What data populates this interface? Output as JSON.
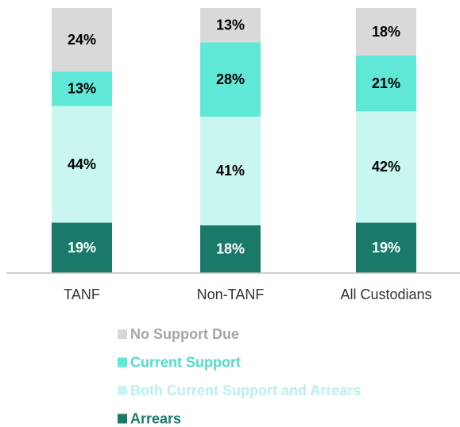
{
  "chart_data": {
    "type": "stacked_bar",
    "categories": [
      "TANF",
      "Non-TANF",
      "All Custodians"
    ],
    "series": [
      {
        "name": "Arrears",
        "color": "#1a7a6a",
        "text_color": "#1a7a6a",
        "values": [
          19,
          18,
          19
        ],
        "value_labels": [
          "19%",
          "18%",
          "19%"
        ]
      },
      {
        "name": "Both Current Support and Arrears",
        "color": "#c9f6ef",
        "text_color": "#b9f0e8",
        "values": [
          44,
          41,
          42
        ],
        "value_labels": [
          "44%",
          "41%",
          "42%"
        ]
      },
      {
        "name": "Current Support",
        "color": "#5ee8d5",
        "text_color": "#4fdcc8",
        "values": [
          13,
          28,
          21
        ],
        "value_labels": [
          "13%",
          "28%",
          "21%"
        ]
      },
      {
        "name": "No Support Due",
        "color": "#d9d9d9",
        "text_color": "#a6a6a6",
        "values": [
          24,
          13,
          18
        ],
        "value_labels": [
          "24%",
          "13%",
          "18%"
        ]
      }
    ],
    "ylim": [
      0,
      100
    ]
  }
}
